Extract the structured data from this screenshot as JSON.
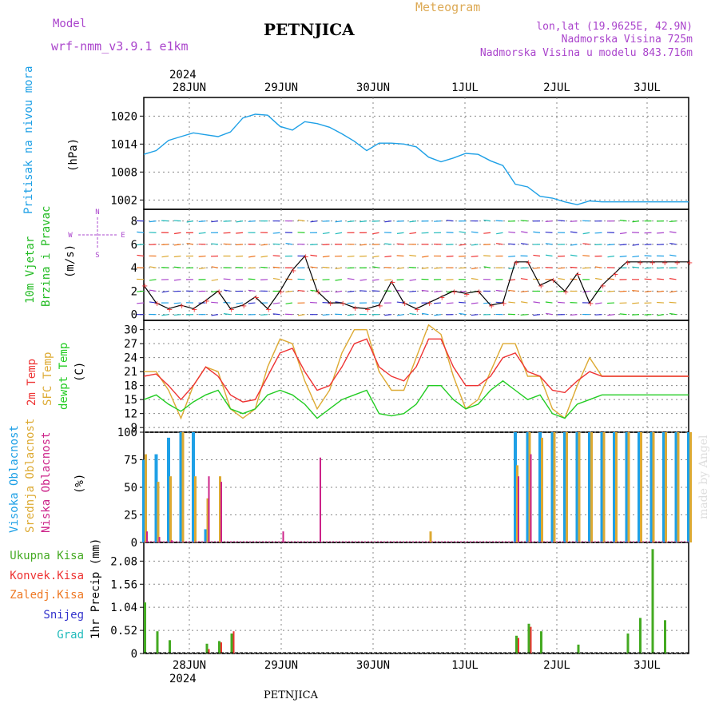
{
  "header": {
    "model_label": "Model",
    "model_name": "wrf-nmm_v3.9.1  e1km",
    "station_title": "PETNJICA",
    "chart_title": "Meteogram",
    "lonlat": "lon,lat (19.9625E, 42.9N)",
    "altitude": "Nadmorska Visina 725m",
    "model_altitude": "Nadmorska Visina u modelu 843.716m",
    "year_label": "2024",
    "footer_station": "PETNJICA",
    "watermark": "made by Angel"
  },
  "colors": {
    "pressure": "#1ea0e6",
    "wind_label": "#22bb22",
    "temp2m": "#ee3333",
    "sfc_temp": "#ddaa33",
    "dewpoint": "#22cc22",
    "high_cloud": "#1ea0e6",
    "mid_cloud": "#ddaa33",
    "low_cloud": "#cc2288",
    "total_precip": "#44aa22",
    "conv_precip": "#ee3333",
    "frozen_precip": "#ee7722",
    "snow": "#3333cc",
    "hail": "#22bbbb",
    "purple_text": "#aa44cc"
  },
  "x_axis": {
    "days": [
      "28JUN",
      "29JUN",
      "30JUN",
      "1JUL",
      "2JUL",
      "3JUL"
    ],
    "start_hour": 0,
    "end_hour": 132
  },
  "panels": {
    "pressure": {
      "ylabel_name": "Pritisak na nivou mora",
      "unit": "(hPa)",
      "ticks": [
        "1002",
        "1008",
        "1014",
        "1020"
      ]
    },
    "wind": {
      "ylabel_name1": "10m Vjetar",
      "ylabel_name2": "Brzina i Pravac",
      "unit": "(m/s)",
      "ticks": [
        "0",
        "2",
        "4",
        "6",
        "8"
      ],
      "compass": {
        "n": "N",
        "s": "S",
        "w": "W",
        "e": "E"
      }
    },
    "temp": {
      "ylabel1": "2m Temp",
      "ylabel2": "SFC Temp",
      "ylabel3": "dewpt Temp",
      "unit": "(C)",
      "ticks": [
        "9",
        "12",
        "15",
        "18",
        "21",
        "24",
        "27",
        "30"
      ]
    },
    "cloud": {
      "ylabel1": "Visoka Oblacnost",
      "ylabel2": "Srednja Oblacnost",
      "ylabel3": "Niska Oblacnost",
      "unit": "(%)",
      "ticks": [
        "0",
        "25",
        "50",
        "75",
        "100"
      ]
    },
    "precip": {
      "ylabel": "1hr Precip (mm)",
      "ticks": [
        "0",
        "0.52",
        "1.04",
        "1.56",
        "2.08"
      ],
      "legend": [
        "Ukupna Kisa",
        "Konvek.Kisa",
        "Zaledj.Kisa",
        "Snijeg",
        "Grad"
      ]
    }
  },
  "chart_data": [
    {
      "type": "line",
      "title": "Pritisak na nivou mora",
      "ylabel": "(hPa)",
      "ylim": [
        1000,
        1024
      ],
      "x": [
        0,
        3,
        6,
        9,
        12,
        15,
        18,
        21,
        24,
        27,
        30,
        33,
        36,
        39,
        42,
        45,
        48,
        51,
        54,
        57,
        60,
        63,
        66,
        69,
        72,
        75,
        78,
        81,
        84,
        87,
        90,
        93,
        96,
        99,
        102,
        105,
        108,
        111,
        114,
        117,
        120,
        123,
        126,
        129,
        132
      ],
      "series": [
        {
          "name": "SLP",
          "values": [
            1011.8,
            1012.6,
            1014.8,
            1015.6,
            1016.4,
            1016.0,
            1015.6,
            1016.6,
            1019.6,
            1020.4,
            1020.2,
            1017.8,
            1017.0,
            1018.8,
            1018.4,
            1017.6,
            1016.2,
            1014.6,
            1012.6,
            1014.2,
            1014.2,
            1014.0,
            1013.4,
            1011.2,
            1010.2,
            1011.0,
            1012.0,
            1011.8,
            1010.4,
            1009.4,
            1005.4,
            1004.8,
            1002.8,
            1002.4,
            1001.6,
            1001.0,
            1001.8,
            1001.6,
            1001.6,
            1001.6,
            1001.6,
            1001.6,
            1001.6,
            1001.6,
            1001.6
          ]
        }
      ]
    },
    {
      "type": "line",
      "title": "10m Vjetar Brzina i Pravac",
      "ylabel": "(m/s)",
      "ylim": [
        -0.5,
        9
      ],
      "x": [
        0,
        3,
        6,
        9,
        12,
        15,
        18,
        21,
        24,
        27,
        30,
        33,
        36,
        39,
        42,
        45,
        48,
        51,
        54,
        57,
        60,
        63,
        66,
        69,
        72,
        75,
        78,
        81,
        84,
        87,
        90,
        93,
        96,
        99,
        102,
        105,
        108,
        111,
        114,
        117,
        120,
        123,
        126,
        129,
        132
      ],
      "series": [
        {
          "name": "wind speed",
          "values": [
            2.5,
            1.0,
            0.5,
            0.8,
            0.5,
            1.2,
            2.0,
            0.5,
            0.8,
            1.5,
            0.5,
            2.0,
            3.8,
            5.0,
            2.0,
            1.0,
            1.0,
            0.6,
            0.5,
            0.8,
            2.8,
            1.0,
            0.5,
            1.0,
            1.5,
            2.0,
            1.8,
            2.0,
            0.8,
            1.0,
            4.5,
            4.5,
            2.5,
            3.0,
            2.0,
            3.5,
            1.0,
            2.5,
            3.5,
            4.5,
            4.5,
            4.5,
            4.5,
            4.5,
            4.5
          ]
        }
      ]
    },
    {
      "type": "line",
      "title": "2m Temp / SFC Temp / dewpt Temp",
      "ylabel": "(C)",
      "ylim": [
        8,
        32
      ],
      "x": [
        0,
        3,
        6,
        9,
        12,
        15,
        18,
        21,
        24,
        27,
        30,
        33,
        36,
        39,
        42,
        45,
        48,
        51,
        54,
        57,
        60,
        63,
        66,
        69,
        72,
        75,
        78,
        81,
        84,
        87,
        90,
        93,
        96,
        99,
        102,
        105,
        108,
        111,
        114,
        117,
        120,
        123,
        126,
        129,
        132
      ],
      "series": [
        {
          "name": "2m Temp",
          "values": [
            20,
            20.5,
            18,
            15,
            18,
            22,
            20,
            16,
            14.5,
            15,
            20,
            25,
            26,
            21,
            17,
            18,
            22,
            27,
            28,
            22,
            20,
            19,
            22,
            28,
            28,
            22,
            18,
            18,
            20,
            24,
            25,
            21,
            20,
            17,
            16.5,
            19,
            21,
            20,
            20,
            20,
            20,
            20,
            20,
            20,
            20
          ]
        },
        {
          "name": "SFC Temp",
          "values": [
            21,
            21,
            17,
            11,
            18,
            22,
            21,
            13,
            11,
            13,
            22,
            28,
            27,
            19,
            13,
            17,
            25,
            30,
            30,
            21,
            17,
            17,
            24,
            31,
            29,
            20,
            13,
            15,
            21,
            27,
            27,
            20,
            20,
            13,
            11,
            18,
            24,
            20,
            20,
            20,
            20,
            20,
            20,
            20,
            20
          ]
        },
        {
          "name": "dewpt Temp",
          "values": [
            15,
            16,
            14,
            12.5,
            14.5,
            16,
            17,
            13,
            12,
            13,
            16,
            17,
            16,
            14,
            11,
            13,
            15,
            16,
            17,
            12,
            11.5,
            12,
            14,
            18,
            18,
            15,
            13,
            14,
            17,
            19,
            17,
            15,
            16,
            12,
            11,
            14,
            15,
            16,
            16,
            16,
            16,
            16,
            16,
            16,
            16
          ]
        }
      ]
    },
    {
      "type": "bar",
      "title": "Visoka / Srednja / Niska Oblacnost",
      "ylabel": "(%)",
      "ylim": [
        0,
        100
      ],
      "x": [
        0,
        3,
        6,
        9,
        12,
        15,
        18,
        21,
        24,
        27,
        30,
        33,
        36,
        39,
        42,
        45,
        48,
        51,
        54,
        57,
        60,
        63,
        66,
        69,
        72,
        75,
        78,
        81,
        84,
        87,
        90,
        93,
        96,
        99,
        102,
        105,
        108,
        111,
        114,
        117,
        120,
        123,
        126,
        129,
        132
      ],
      "series": [
        {
          "name": "Visoka Oblacnost",
          "values": [
            75,
            80,
            95,
            100,
            100,
            12,
            0,
            0,
            0,
            0,
            0,
            0,
            0,
            0,
            0,
            0,
            0,
            0,
            0,
            0,
            0,
            0,
            0,
            0,
            0,
            0,
            0,
            0,
            0,
            0,
            100,
            100,
            100,
            100,
            100,
            100,
            100,
            100,
            100,
            100,
            100,
            100,
            100,
            100,
            100
          ]
        },
        {
          "name": "Srednja Oblacnost",
          "values": [
            80,
            55,
            60,
            100,
            60,
            40,
            60,
            0,
            0,
            0,
            0,
            0,
            0,
            0,
            0,
            0,
            0,
            0,
            0,
            0,
            0,
            0,
            0,
            10,
            0,
            0,
            0,
            0,
            0,
            0,
            70,
            100,
            95,
            100,
            100,
            100,
            100,
            100,
            100,
            100,
            100,
            100,
            100,
            100,
            100
          ]
        },
        {
          "name": "Niska Oblacnost",
          "values": [
            10,
            5,
            2,
            0,
            0,
            60,
            55,
            0,
            0,
            0,
            0,
            10,
            0,
            0,
            77,
            0,
            0,
            0,
            0,
            0,
            0,
            0,
            0,
            0,
            0,
            0,
            0,
            0,
            0,
            0,
            60,
            80,
            0,
            0,
            0,
            0,
            0,
            0,
            0,
            0,
            0,
            0,
            0,
            0,
            0
          ]
        }
      ]
    },
    {
      "type": "bar",
      "title": "1hr Precip",
      "ylabel": "1hr Precip (mm)",
      "ylim": [
        0,
        2.5
      ],
      "x": [
        0,
        3,
        6,
        9,
        12,
        15,
        18,
        21,
        24,
        27,
        30,
        33,
        36,
        39,
        42,
        45,
        48,
        51,
        54,
        57,
        60,
        63,
        66,
        69,
        72,
        75,
        78,
        81,
        84,
        87,
        90,
        93,
        96,
        99,
        102,
        105,
        108,
        111,
        114,
        117,
        120,
        123,
        126,
        129,
        132
      ],
      "series": [
        {
          "name": "Ukupna Kisa",
          "values": [
            1.15,
            0.5,
            0.3,
            0,
            0,
            0.22,
            0.28,
            0.45,
            0,
            0,
            0,
            0,
            0,
            0,
            0,
            0,
            0,
            0,
            0,
            0,
            0,
            0,
            0,
            0,
            0,
            0,
            0,
            0,
            0,
            0,
            0.4,
            0.67,
            0.5,
            0,
            0,
            0.2,
            0,
            0,
            0,
            0.45,
            0.8,
            2.35,
            0.75,
            0,
            0
          ]
        },
        {
          "name": "Konvek.Kisa",
          "values": [
            0,
            0,
            0,
            0,
            0,
            0.1,
            0.25,
            0.5,
            0,
            0,
            0,
            0,
            0,
            0,
            0,
            0,
            0,
            0,
            0,
            0,
            0,
            0,
            0,
            0,
            0,
            0,
            0,
            0,
            0,
            0,
            0.35,
            0.6,
            0,
            0,
            0,
            0,
            0,
            0,
            0,
            0,
            0,
            0,
            0,
            0,
            0
          ]
        }
      ]
    }
  ]
}
